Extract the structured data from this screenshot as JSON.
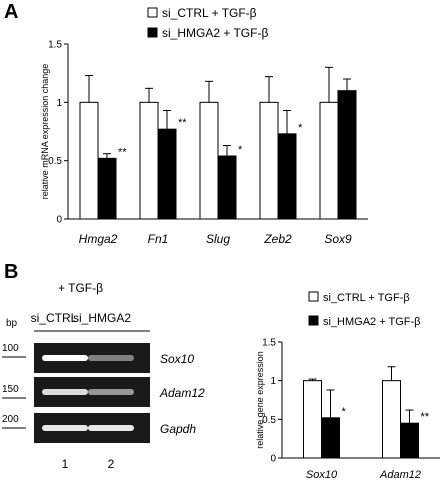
{
  "panels": {
    "a": {
      "letter": "A"
    },
    "b": {
      "letter": "B",
      "treatment": "+ TGF-β",
      "bp_label": "bp"
    }
  },
  "gel": {
    "lanes": [
      "si_CTRL",
      "si_HMGA2"
    ],
    "lane_numbers": [
      "1",
      "2"
    ],
    "bp_markers": [
      "100",
      "150",
      "200"
    ],
    "rows": [
      {
        "gene": "Sox10",
        "intensities": [
          1.0,
          0.45
        ]
      },
      {
        "gene": "Adam12",
        "intensities": [
          0.85,
          0.55
        ]
      },
      {
        "gene": "Gapdh",
        "intensities": [
          0.9,
          0.9
        ]
      }
    ]
  },
  "colors": {
    "ctrl_fill": "#ffffff",
    "hmga2_fill": "#000000",
    "gel_bg": "#1a1a1a",
    "band": "#ffffff"
  },
  "chart_data": [
    {
      "type": "bar",
      "title": "",
      "categories": [
        "Hmga2",
        "Fn1",
        "Slug",
        "Zeb2",
        "Sox9"
      ],
      "series": [
        {
          "name": "si_CTRL + TGF-β",
          "values": [
            1.0,
            1.0,
            1.0,
            1.0,
            1.0
          ],
          "errors": [
            0.23,
            0.12,
            0.18,
            0.22,
            0.3
          ]
        },
        {
          "name": "si_HMGA2 + TGF-β",
          "values": [
            0.52,
            0.77,
            0.54,
            0.73,
            1.1
          ],
          "errors": [
            0.04,
            0.16,
            0.09,
            0.2,
            0.1
          ]
        }
      ],
      "significance": [
        "**",
        "**",
        "*",
        "*",
        ""
      ],
      "ylabel": "relative mRNA expression change",
      "xlabel": "",
      "ylim": [
        0,
        1.5
      ],
      "yticks": [
        "0",
        "0.5",
        "1",
        "1.5"
      ],
      "legend": "top"
    },
    {
      "type": "bar",
      "title": "",
      "categories": [
        "Sox10",
        "Adam12"
      ],
      "series": [
        {
          "name": "si_CTRL + TGF-β",
          "values": [
            1.0,
            1.0
          ],
          "errors": [
            0.02,
            0.18
          ]
        },
        {
          "name": "si_HMGA2 + TGF-β",
          "values": [
            0.52,
            0.45
          ],
          "errors": [
            0.36,
            0.17
          ]
        }
      ],
      "significance": [
        "*",
        "**"
      ],
      "ylabel": "relative gene expression",
      "xlabel": "",
      "ylim": [
        0,
        1.5
      ],
      "yticks": [
        "0",
        "0.5",
        "1",
        "1.5"
      ],
      "legend": "top"
    }
  ]
}
